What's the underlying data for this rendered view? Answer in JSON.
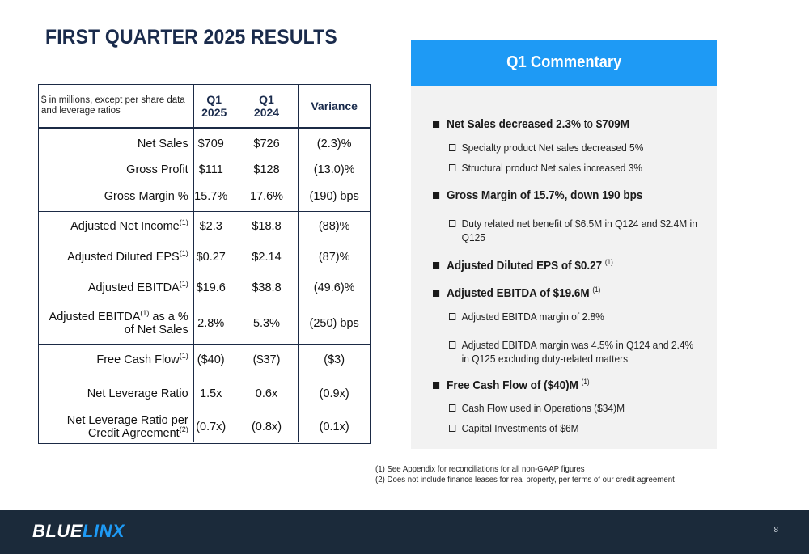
{
  "title": "FIRST QUARTER 2025 RESULTS",
  "table": {
    "note": "$ in millions, except per share data and leverage ratios",
    "col1": [
      "Q1",
      "2025"
    ],
    "col2": [
      "Q1",
      "2024"
    ],
    "col3": "Variance",
    "rows": [
      {
        "label": "Net Sales",
        "sup": "",
        "q1_2025": "$709",
        "q1_2024": "$726",
        "variance": "(2.3)%"
      },
      {
        "label": "Gross Profit",
        "sup": "",
        "q1_2025": "$111",
        "q1_2024": "$128",
        "variance": "(13.0)%"
      },
      {
        "label": "Gross Margin %",
        "sup": "",
        "q1_2025": "15.7%",
        "q1_2024": "17.6%",
        "variance": "(190) bps"
      },
      {
        "label": "Adjusted Net Income",
        "sup": "(1)",
        "q1_2025": "$2.3",
        "q1_2024": "$18.8",
        "variance": "(88)%"
      },
      {
        "label": "Adjusted Diluted EPS",
        "sup": "(1)",
        "q1_2025": "$0.27",
        "q1_2024": "$2.14",
        "variance": "(87)%"
      },
      {
        "label": "Adjusted EBITDA",
        "sup": "(1)",
        "q1_2025": "$19.6",
        "q1_2024": "$38.8",
        "variance": "(49.6)%"
      },
      {
        "label_a": "Adjusted EBITDA",
        "sup": "(1)",
        "label_b": " as a %",
        "label_c": "of Net Sales",
        "q1_2025": "2.8%",
        "q1_2024": "5.3%",
        "variance": "(250) bps"
      },
      {
        "label": "Free Cash Flow",
        "sup": "(1)",
        "q1_2025": "($40)",
        "q1_2024": "($37)",
        "variance": "($3)"
      },
      {
        "label": "Net Leverage Ratio",
        "sup": "",
        "q1_2025": "1.5x",
        "q1_2024": "0.6x",
        "variance": "(0.9x)"
      },
      {
        "label_a": "Net Leverage Ratio per",
        "label_c": "Credit Agreement",
        "sup": "(2)",
        "q1_2025": "(0.7x)",
        "q1_2024": "(0.8x)",
        "variance": "(0.1x)"
      }
    ]
  },
  "commentary": {
    "heading": "Q1 Commentary",
    "items": {
      "net_sales": {
        "bold": "Net Sales decreased 2.3%",
        "thin": " to ",
        "bold2": "$709M"
      },
      "net_sales_sub1": "Specialty product Net sales decreased 5%",
      "net_sales_sub2": "Structural product Net sales increased 3%",
      "gross_margin": "Gross Margin of 15.7%, down 190 bps",
      "gross_margin_sub1_a": "Duty related net benefit of $6.5M in Q124 and $2.4M in",
      "gross_margin_sub1_b": "Q125",
      "eps": "Adjusted Diluted EPS of $0.27",
      "eps_sup": "(1)",
      "ebitda": "Adjusted EBITDA of $19.6M",
      "ebitda_sup": "(1)",
      "ebitda_sub1": "Adjusted EBITDA margin of 2.8%",
      "ebitda_sub2_a": "Adjusted EBITDA margin was 4.5% in Q124 and 2.4%",
      "ebitda_sub2_b": "in Q125 excluding duty-related matters",
      "fcf": "Free Cash Flow of ($40)M",
      "fcf_sup": "(1)",
      "fcf_sub1": "Cash Flow used in Operations ($34)M",
      "fcf_sub2": "Capital Investments of $6M"
    }
  },
  "footnotes": [
    "(1) See Appendix for reconciliations for all non-GAAP figures",
    "(2) Does not include finance leases for real property, per terms of our credit agreement"
  ],
  "footer": {
    "logo_a": "BLUE",
    "logo_b": "LINX",
    "page": "8"
  },
  "colors": {
    "accent": "#1e9af5",
    "navy": "#1b2a3a",
    "title": "#1a2b4c"
  }
}
